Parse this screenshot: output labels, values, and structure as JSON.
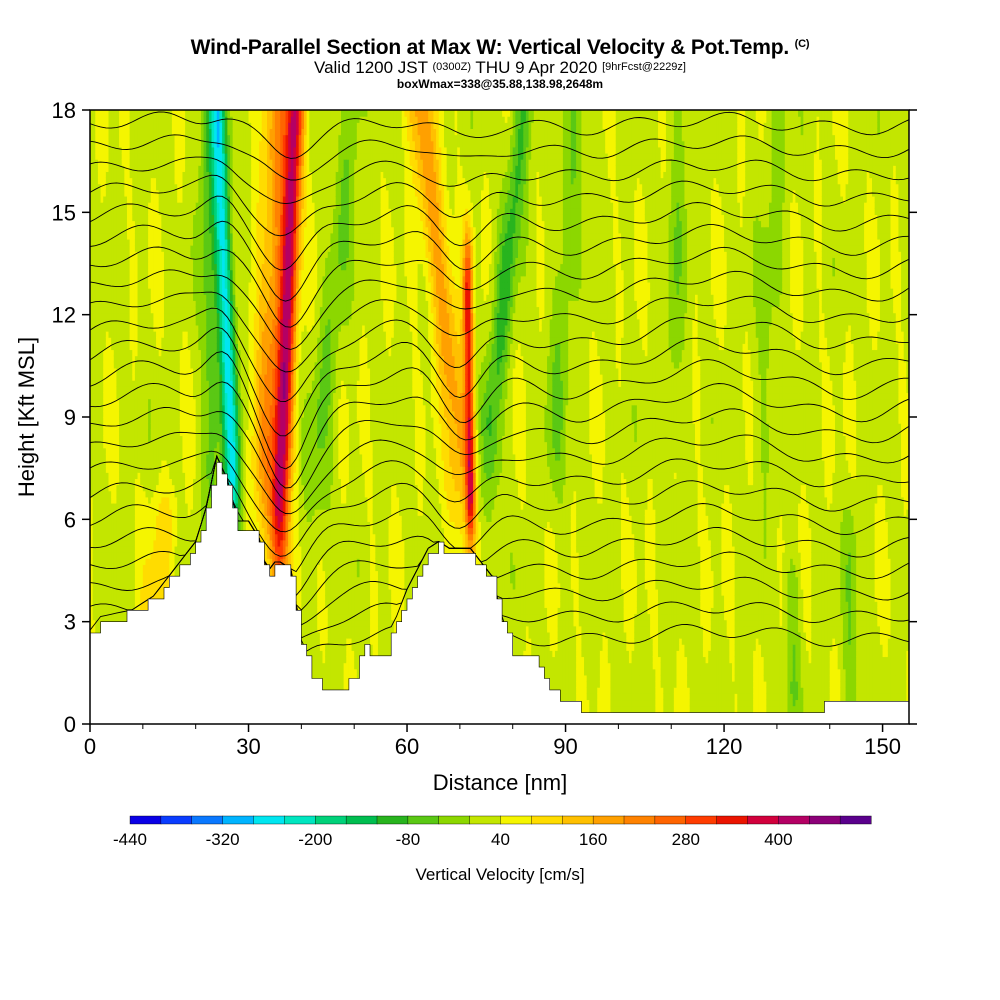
{
  "title": {
    "main": "Wind-Parallel Section at Max W: Vertical Velocity & Pot.Temp.",
    "copyright": "(C)",
    "valid_prefix": "Valid 1200 JST",
    "valid_utc": "(0300Z)",
    "valid_date": "THU 9 Apr 2020",
    "forecast": "[9hrFcst@2229z]",
    "boxmax": "boxWmax=338@35.88,138.98,2648m"
  },
  "chart_data": {
    "type": "heatmap",
    "xlabel": "Distance [nm]",
    "ylabel": "Height [Kft MSL]",
    "xlim": [
      0,
      155
    ],
    "ylim": [
      0,
      18
    ],
    "xticks": [
      "0",
      "30",
      "60",
      "90",
      "120",
      "150"
    ],
    "yticks": [
      "0",
      "3",
      "6",
      "9",
      "12",
      "15",
      "18"
    ],
    "colorbar": {
      "label": "Vertical Velocity [cm/s]",
      "tick_labels": [
        "-440",
        "-320",
        "-200",
        "-80",
        "40",
        "160",
        "280",
        "400"
      ],
      "levels": [
        -440,
        -400,
        -360,
        -320,
        -280,
        -240,
        -200,
        -160,
        -120,
        -80,
        -40,
        0,
        40,
        80,
        120,
        160,
        200,
        240,
        280,
        320,
        360,
        400,
        440,
        480
      ],
      "colors": [
        "#0a00e6",
        "#0a3cff",
        "#0a78ff",
        "#00b4ff",
        "#00e6f0",
        "#00e6c0",
        "#00d27a",
        "#00be50",
        "#28b41e",
        "#5ac814",
        "#8cd700",
        "#c3e600",
        "#f5f500",
        "#ffdc00",
        "#ffc000",
        "#ffa000",
        "#ff8200",
        "#ff6400",
        "#ff3c00",
        "#eb1400",
        "#d2003c",
        "#b40064",
        "#8c0078",
        "#5a008c"
      ]
    },
    "terrain": {
      "x": [
        0,
        2,
        8,
        12,
        16,
        20,
        22,
        24,
        26,
        28,
        30,
        32,
        33,
        34,
        35,
        36,
        38,
        40,
        42,
        44,
        46,
        48,
        50,
        52,
        54,
        56,
        58,
        60,
        62,
        64,
        66,
        68,
        70,
        72,
        74,
        76,
        78,
        80,
        82,
        84,
        86,
        88,
        90,
        95,
        100,
        110,
        120,
        130,
        136,
        140,
        150,
        155
      ],
      "y": [
        2.6,
        3.0,
        3.2,
        3.6,
        4.4,
        5.2,
        6.2,
        7.7,
        7.0,
        5.8,
        5.8,
        5.3,
        4.6,
        4.4,
        4.6,
        4.6,
        4.4,
        2.3,
        1.4,
        1.0,
        1.0,
        1.0,
        1.4,
        2.3,
        2.0,
        2.0,
        3.0,
        3.8,
        4.4,
        5.0,
        5.2,
        5.0,
        5.0,
        5.0,
        4.6,
        4.2,
        3.0,
        2.0,
        2.0,
        2.0,
        1.4,
        0.9,
        0.6,
        0.4,
        0.3,
        0.3,
        0.3,
        0.3,
        0.3,
        0.6,
        0.6,
        0.6
      ]
    },
    "updrafts": [
      {
        "x_bottom": 34,
        "x_top": 38,
        "y_bottom": 6.5,
        "y_top": 18,
        "value": 338
      },
      {
        "x_bottom": 72,
        "x_top": 72,
        "y_bottom": 7,
        "y_top": 12,
        "value": 300
      },
      {
        "x_bottom": 62,
        "x_top": 64,
        "y_bottom": 9,
        "y_top": 18,
        "value": 160
      }
    ],
    "downdrafts": [
      {
        "x_bottom": 26,
        "x_top": 24,
        "y_bottom": 8,
        "y_top": 18,
        "value": -280
      }
    ],
    "theta_contours": {
      "count": 23,
      "y_start_left": 2.6,
      "y_end_left": 17.6
    }
  }
}
